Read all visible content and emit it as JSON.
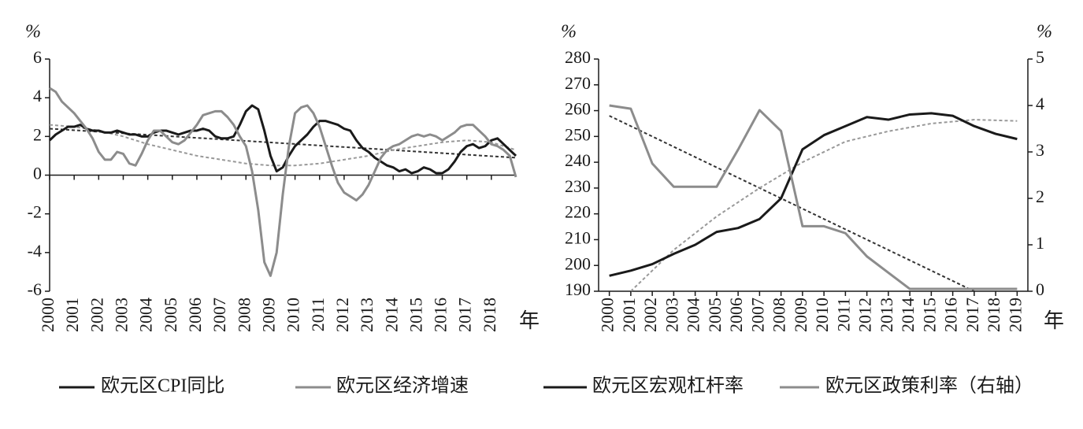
{
  "chart_data": [
    {
      "type": "line",
      "y_unit": "%",
      "x_unit": "年",
      "x": [
        2000,
        2000.25,
        2000.5,
        2000.75,
        2001,
        2001.25,
        2001.5,
        2001.75,
        2002,
        2002.25,
        2002.5,
        2002.75,
        2003,
        2003.25,
        2003.5,
        2003.75,
        2004,
        2004.25,
        2004.5,
        2004.75,
        2005,
        2005.25,
        2005.5,
        2005.75,
        2006,
        2006.25,
        2006.5,
        2006.75,
        2007,
        2007.25,
        2007.5,
        2007.75,
        2008,
        2008.25,
        2008.5,
        2008.75,
        2009,
        2009.25,
        2009.5,
        2009.75,
        2010,
        2010.25,
        2010.5,
        2010.75,
        2011,
        2011.25,
        2011.5,
        2011.75,
        2012,
        2012.25,
        2012.5,
        2012.75,
        2013,
        2013.25,
        2013.5,
        2013.75,
        2014,
        2014.25,
        2014.5,
        2014.75,
        2015,
        2015.25,
        2015.5,
        2015.75,
        2016,
        2016.25,
        2016.5,
        2016.75,
        2017,
        2017.25,
        2017.5,
        2017.75,
        2018,
        2018.25,
        2018.5,
        2018.75,
        2019
      ],
      "series": [
        {
          "name": "欧元区CPI同比",
          "color": "#1a1a1a",
          "values": [
            1.8,
            2.1,
            2.3,
            2.5,
            2.5,
            2.6,
            2.4,
            2.3,
            2.3,
            2.2,
            2.2,
            2.3,
            2.2,
            2.1,
            2.1,
            2.0,
            2.0,
            2.2,
            2.3,
            2.3,
            2.2,
            2.1,
            2.2,
            2.3,
            2.3,
            2.4,
            2.3,
            2.0,
            1.9,
            1.9,
            2.0,
            2.6,
            3.3,
            3.6,
            3.4,
            2.3,
            1.0,
            0.2,
            0.4,
            1.0,
            1.5,
            1.8,
            2.1,
            2.5,
            2.8,
            2.8,
            2.7,
            2.6,
            2.4,
            2.3,
            1.8,
            1.4,
            1.2,
            0.9,
            0.7,
            0.5,
            0.4,
            0.2,
            0.3,
            0.1,
            0.2,
            0.4,
            0.3,
            0.1,
            0.1,
            0.3,
            0.7,
            1.2,
            1.5,
            1.6,
            1.4,
            1.5,
            1.8,
            1.9,
            1.6,
            1.3,
            1.0
          ]
        },
        {
          "name": "欧元区经济增速",
          "color": "#8c8c8c",
          "values": [
            4.5,
            4.3,
            3.8,
            3.5,
            3.2,
            2.8,
            2.4,
            1.9,
            1.2,
            0.8,
            0.8,
            1.2,
            1.1,
            0.6,
            0.5,
            1.1,
            1.8,
            2.3,
            2.3,
            2.0,
            1.7,
            1.6,
            1.8,
            2.2,
            2.6,
            3.1,
            3.2,
            3.3,
            3.3,
            3.0,
            2.6,
            2.0,
            1.5,
            0.2,
            -1.8,
            -4.5,
            -5.2,
            -4.0,
            -1.0,
            1.5,
            3.2,
            3.5,
            3.6,
            3.2,
            2.5,
            1.5,
            0.5,
            -0.4,
            -0.9,
            -1.1,
            -1.3,
            -1.0,
            -0.5,
            0.2,
            0.9,
            1.3,
            1.5,
            1.6,
            1.8,
            2.0,
            2.1,
            2.0,
            2.1,
            2.0,
            1.8,
            2.0,
            2.2,
            2.5,
            2.6,
            2.6,
            2.3,
            2.0,
            1.6,
            1.5,
            1.3,
            1.0,
            -0.1
          ]
        }
      ],
      "trend_lines": [
        {
          "color": "#333333",
          "x": [
            2000,
            2019
          ],
          "values": [
            2.4,
            0.9
          ]
        },
        {
          "color": "#999999",
          "x": [
            2000,
            2001,
            2002,
            2003,
            2004,
            2005,
            2006,
            2007,
            2008,
            2009,
            2010,
            2011,
            2012,
            2013,
            2014,
            2015,
            2016,
            2017,
            2018,
            2019
          ],
          "values": [
            2.6,
            2.5,
            2.3,
            2.0,
            1.6,
            1.3,
            1.0,
            0.8,
            0.6,
            0.5,
            0.5,
            0.6,
            0.8,
            1.0,
            1.3,
            1.5,
            1.7,
            1.8,
            1.7,
            1.3
          ]
        }
      ],
      "xlim": [
        2000,
        2019
      ],
      "xticks": [
        2000,
        2001,
        2002,
        2003,
        2004,
        2005,
        2006,
        2007,
        2008,
        2009,
        2010,
        2011,
        2012,
        2013,
        2014,
        2015,
        2016,
        2017,
        2018
      ],
      "ylim": [
        -6,
        6
      ],
      "yticks": [
        -6,
        -4,
        -2,
        0,
        2,
        4,
        6
      ]
    },
    {
      "type": "line",
      "y_unit": "%",
      "y2_unit": "%",
      "x_unit": "年",
      "x": [
        2000,
        2001,
        2002,
        2003,
        2004,
        2005,
        2006,
        2007,
        2008,
        2009,
        2010,
        2011,
        2012,
        2013,
        2014,
        2015,
        2016,
        2017,
        2018,
        2019
      ],
      "series": [
        {
          "name": "欧元区宏观杠杆率",
          "color": "#1a1a1a",
          "values": [
            196,
            198,
            200.5,
            204.5,
            208,
            213,
            214.5,
            218,
            226,
            245,
            250.5,
            254,
            257.5,
            256.5,
            258.5,
            259,
            258,
            254,
            251,
            249
          ]
        },
        {
          "name": "欧元区政策利率（右轴）",
          "color": "#8c8c8c",
          "axis": "y2",
          "values": [
            4.0,
            3.93,
            2.75,
            2.25,
            2.25,
            2.25,
            3.05,
            3.9,
            3.45,
            1.4,
            1.4,
            1.25,
            0.75,
            0.4,
            0.05,
            0.05,
            0.05,
            0.05,
            0.05,
            0.05
          ]
        }
      ],
      "trend_lines": [
        {
          "color": "#333333",
          "x": [
            2000,
            2017
          ],
          "values": [
            258,
            190
          ]
        },
        {
          "color": "#999999",
          "x": [
            2001,
            2003,
            2005,
            2007,
            2009,
            2011,
            2013,
            2015,
            2017,
            2019
          ],
          "values": [
            190,
            206,
            219,
            230,
            240,
            248,
            252,
            255,
            256.5,
            256
          ]
        }
      ],
      "xlim": [
        1999.5,
        2019.5
      ],
      "xticks": [
        2000,
        2001,
        2002,
        2003,
        2004,
        2005,
        2006,
        2007,
        2008,
        2009,
        2010,
        2011,
        2012,
        2013,
        2014,
        2015,
        2016,
        2017,
        2018,
        2019
      ],
      "ylim": [
        190,
        280
      ],
      "yticks": [
        190,
        200,
        210,
        220,
        230,
        240,
        250,
        260,
        270,
        280
      ],
      "y2lim": [
        0,
        5
      ],
      "y2ticks": [
        0,
        1,
        2,
        3,
        4,
        5
      ]
    }
  ]
}
